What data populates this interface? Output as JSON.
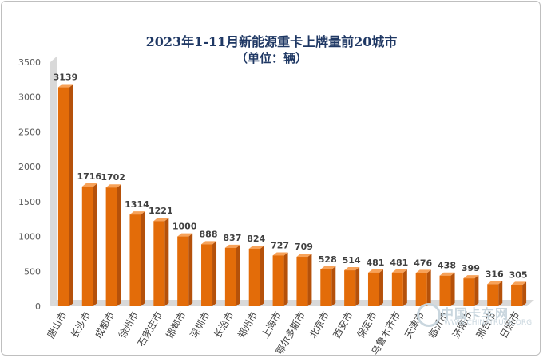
{
  "chart_data": {
    "type": "bar",
    "title": "2023年1-11月新能源重卡上牌量前20城市",
    "subtitle": "（单位：辆）",
    "categories": [
      "唐山市",
      "长沙市",
      "成都市",
      "徐州市",
      "石家庄市",
      "邯郸市",
      "深圳市",
      "长治市",
      "郑州市",
      "上海市",
      "鄂尔多斯市",
      "北京市",
      "西安市",
      "保定市",
      "乌鲁木齐市",
      "天津市",
      "临沂市",
      "济南市",
      "邢台市",
      "日照市"
    ],
    "values": [
      3139,
      1716,
      1702,
      1314,
      1221,
      1000,
      888,
      837,
      824,
      727,
      709,
      528,
      514,
      481,
      481,
      476,
      438,
      399,
      316,
      305
    ],
    "data_labels": [
      "3139",
      "1716",
      "1702",
      "1314",
      "1221",
      "1000",
      "888",
      "837",
      "824",
      "727",
      "709",
      "528",
      "514",
      "481",
      "481",
      "476",
      "438",
      "399",
      "316",
      "305"
    ],
    "ylim": [
      0,
      3500
    ],
    "yticks": [
      "0",
      "500",
      "1000",
      "1500",
      "2000",
      "2500",
      "3000",
      "3500"
    ],
    "grid": false,
    "bar_color": "#e36c09",
    "bar_side_color": "#b5510a",
    "wall_color": "#d9d9d9"
  },
  "watermark": {
    "main": "中国卡车网",
    "sub": "WWW.CHINATRUCK.ORG"
  }
}
